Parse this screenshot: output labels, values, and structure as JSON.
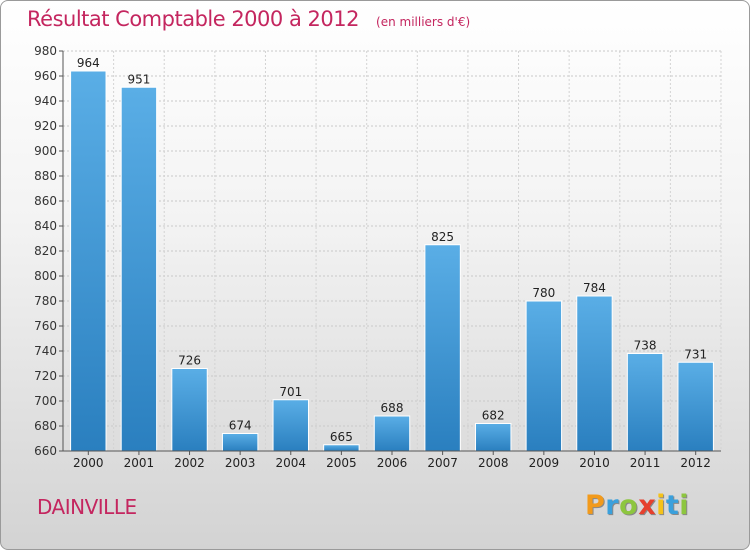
{
  "header": {
    "title": "Résultat Comptable 2000 à 2012",
    "unit": "(en milliers d'€)"
  },
  "footer": {
    "city": "DAINVILLE",
    "brand": "Proxiti"
  },
  "colors": {
    "accent": "#c4265f",
    "bar_light": "#5aaee6",
    "bar_dark": "#2a7fbf"
  },
  "chart_data": {
    "type": "bar",
    "title": "Résultat Comptable 2000 à 2012",
    "categories": [
      "2000",
      "2001",
      "2002",
      "2003",
      "2004",
      "2005",
      "2006",
      "2007",
      "2008",
      "2009",
      "2010",
      "2011",
      "2012"
    ],
    "values": [
      964,
      951,
      726,
      674,
      701,
      665,
      688,
      825,
      682,
      780,
      784,
      738,
      731
    ],
    "ylim": [
      660,
      980
    ],
    "yticks": [
      660,
      680,
      700,
      720,
      740,
      760,
      780,
      800,
      820,
      840,
      860,
      880,
      900,
      920,
      940,
      960,
      980
    ],
    "grid": true,
    "legend": "none"
  }
}
